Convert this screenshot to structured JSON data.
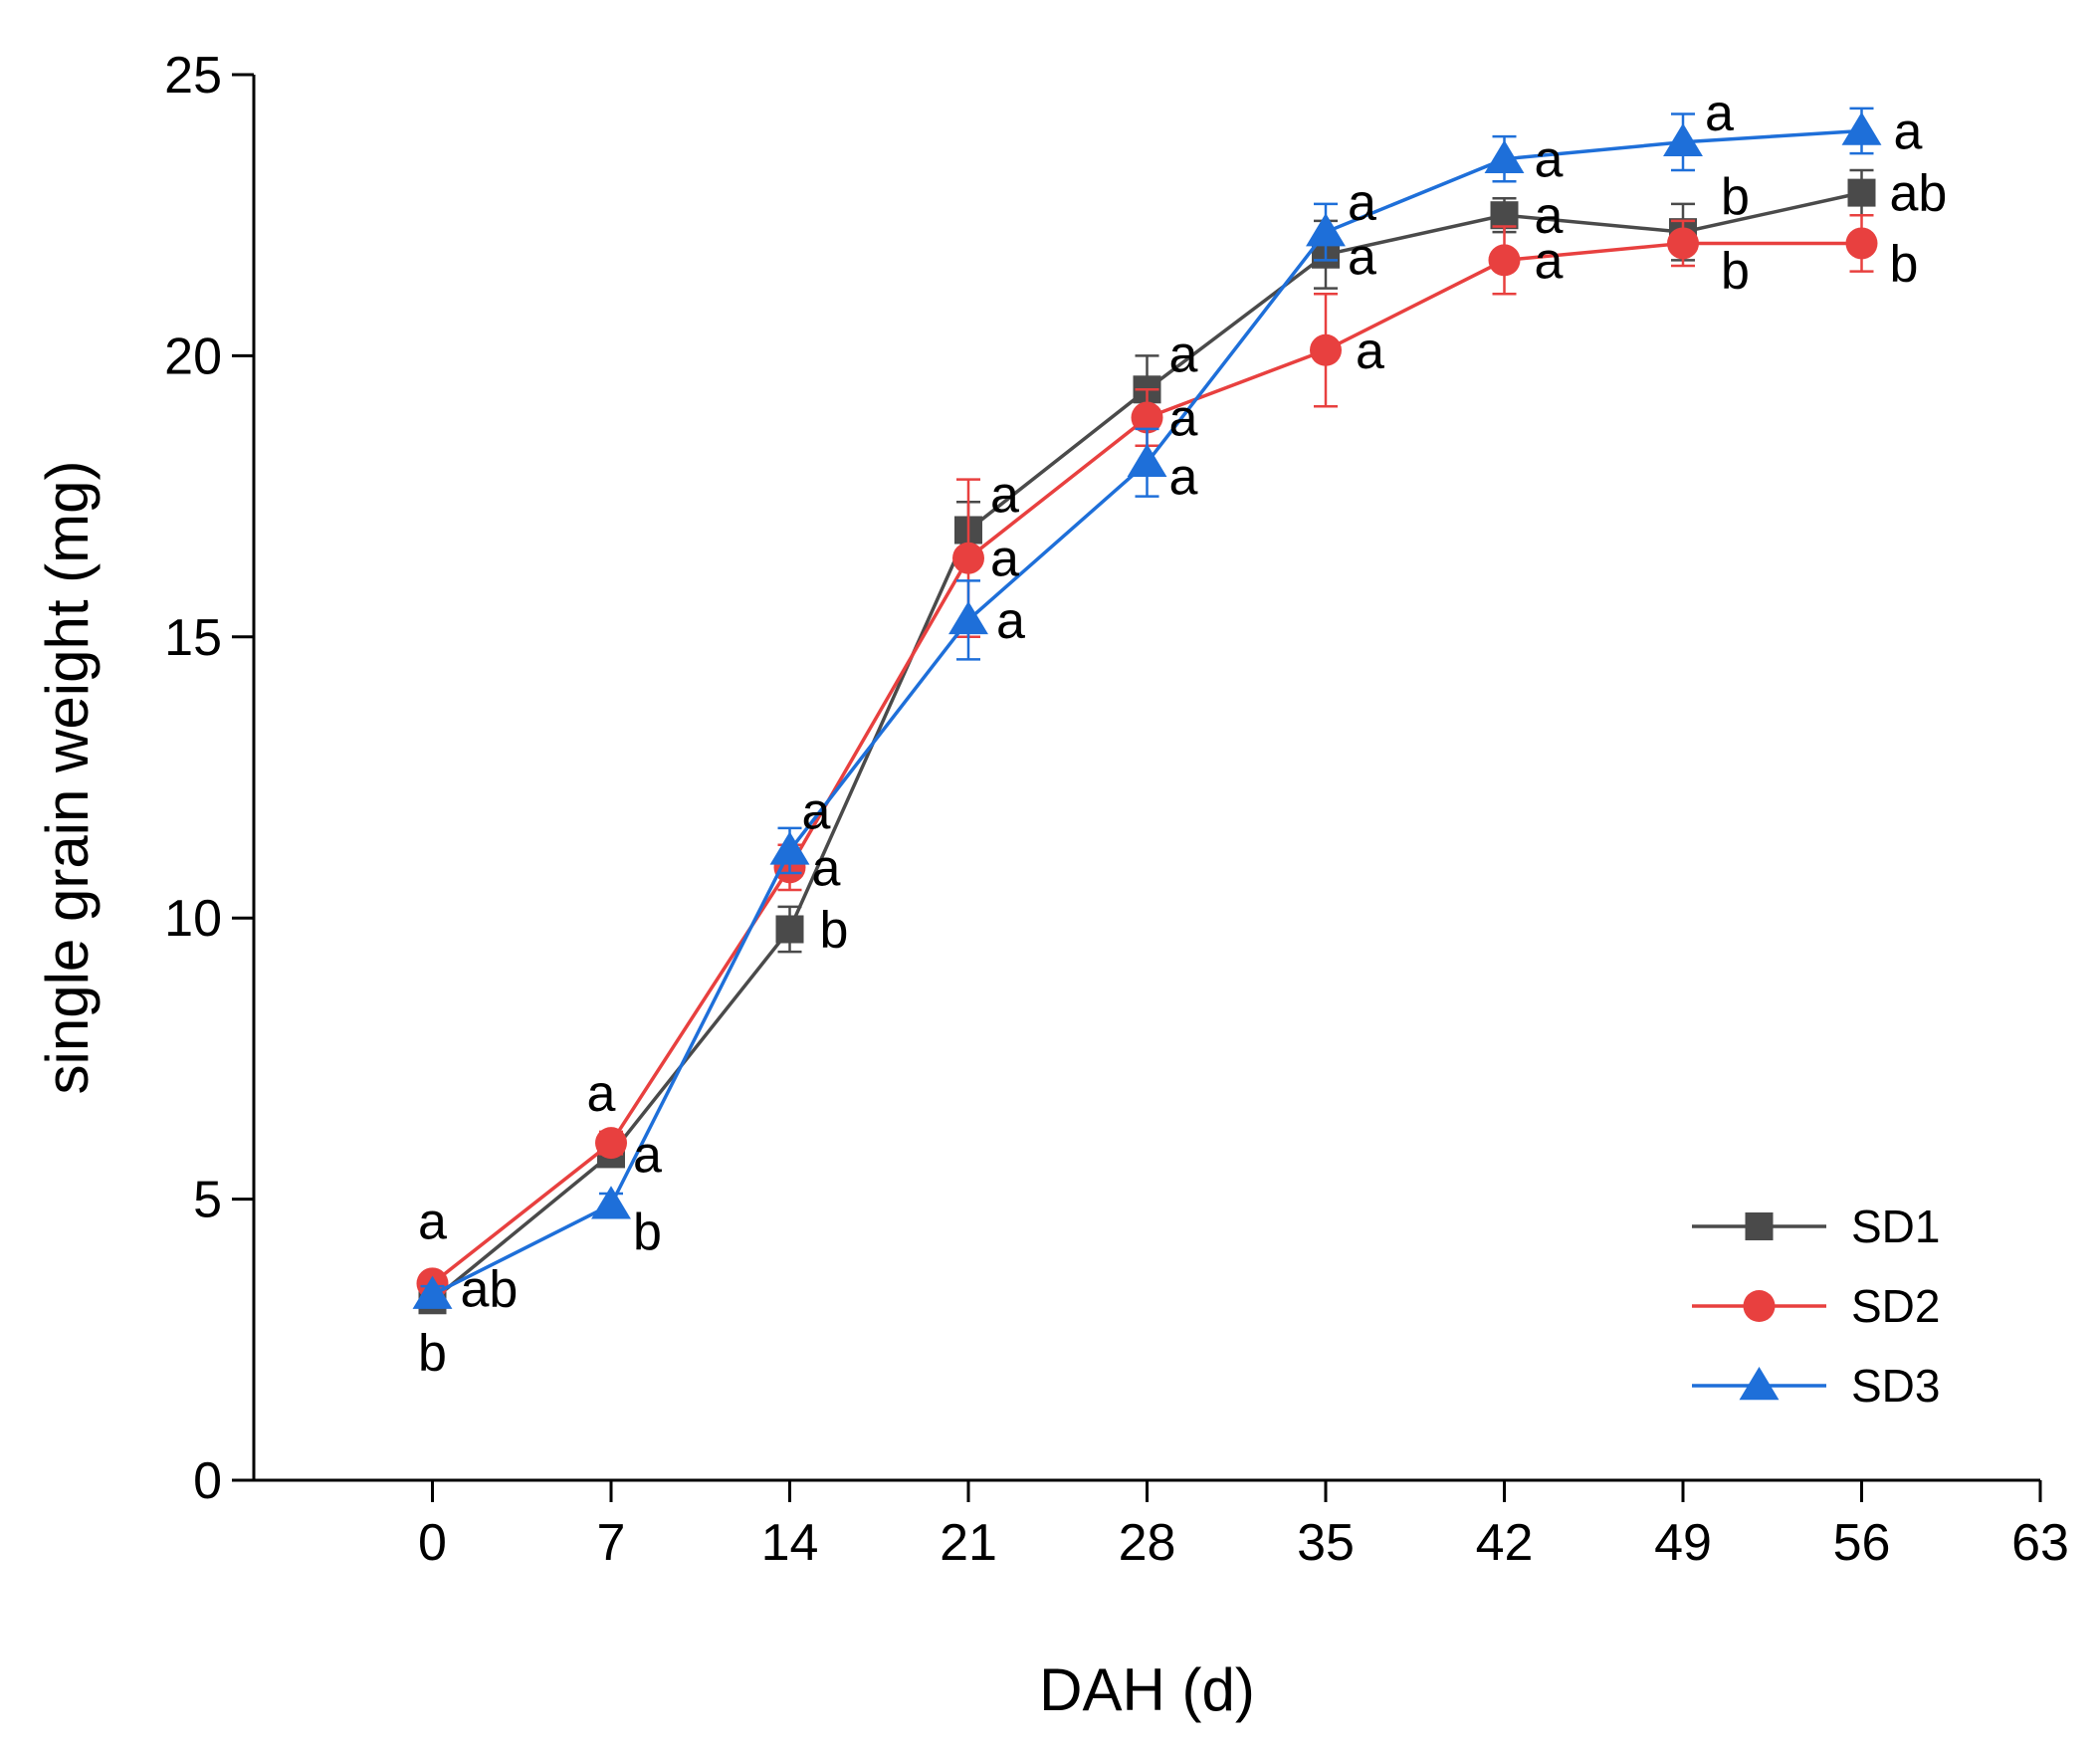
{
  "chart_data": {
    "type": "line",
    "xlabel": "DAH (d)",
    "ylabel": "single grain weight (mg)",
    "xlim": [
      -7,
      63
    ],
    "ylim": [
      0,
      25
    ],
    "x_ticks": [
      0,
      7,
      14,
      21,
      28,
      35,
      42,
      49,
      56,
      63
    ],
    "y_ticks": [
      0,
      5,
      10,
      15,
      20,
      25
    ],
    "grid": false,
    "legend_position": "bottom-right",
    "x": [
      0,
      7,
      14,
      21,
      28,
      35,
      42,
      49,
      56
    ],
    "series": [
      {
        "name": "SD1",
        "color": "#4a4a4a",
        "marker": "square",
        "values": [
          3.2,
          5.8,
          9.8,
          16.9,
          19.4,
          21.8,
          22.5,
          22.2,
          22.9
        ],
        "errors": [
          0.15,
          0.2,
          0.4,
          0.5,
          0.6,
          0.6,
          0.3,
          0.5,
          0.4
        ],
        "labels": [
          "b",
          "a",
          "b",
          "a",
          "a",
          "a",
          "a",
          "b",
          "ab"
        ]
      },
      {
        "name": "SD2",
        "color": "#e8403f",
        "marker": "circle",
        "values": [
          3.5,
          6.0,
          10.9,
          16.4,
          18.9,
          20.1,
          21.7,
          22.0,
          22.0
        ],
        "errors": [
          0.15,
          0.2,
          0.4,
          1.4,
          0.5,
          1.0,
          0.6,
          0.4,
          0.5
        ],
        "labels": [
          "a",
          "a",
          "a",
          "a",
          "a",
          "a",
          "a",
          "b",
          "b"
        ]
      },
      {
        "name": "SD3",
        "color": "#1e6fd9",
        "marker": "triangle",
        "values": [
          3.3,
          4.9,
          11.2,
          15.3,
          18.1,
          22.2,
          23.5,
          23.8,
          24.0
        ],
        "errors": [
          0.15,
          0.2,
          0.4,
          0.7,
          0.6,
          0.5,
          0.4,
          0.5,
          0.4
        ],
        "labels": [
          "ab",
          "b",
          "a",
          "a",
          "a",
          "a",
          "a",
          "a",
          "a"
        ]
      }
    ]
  }
}
